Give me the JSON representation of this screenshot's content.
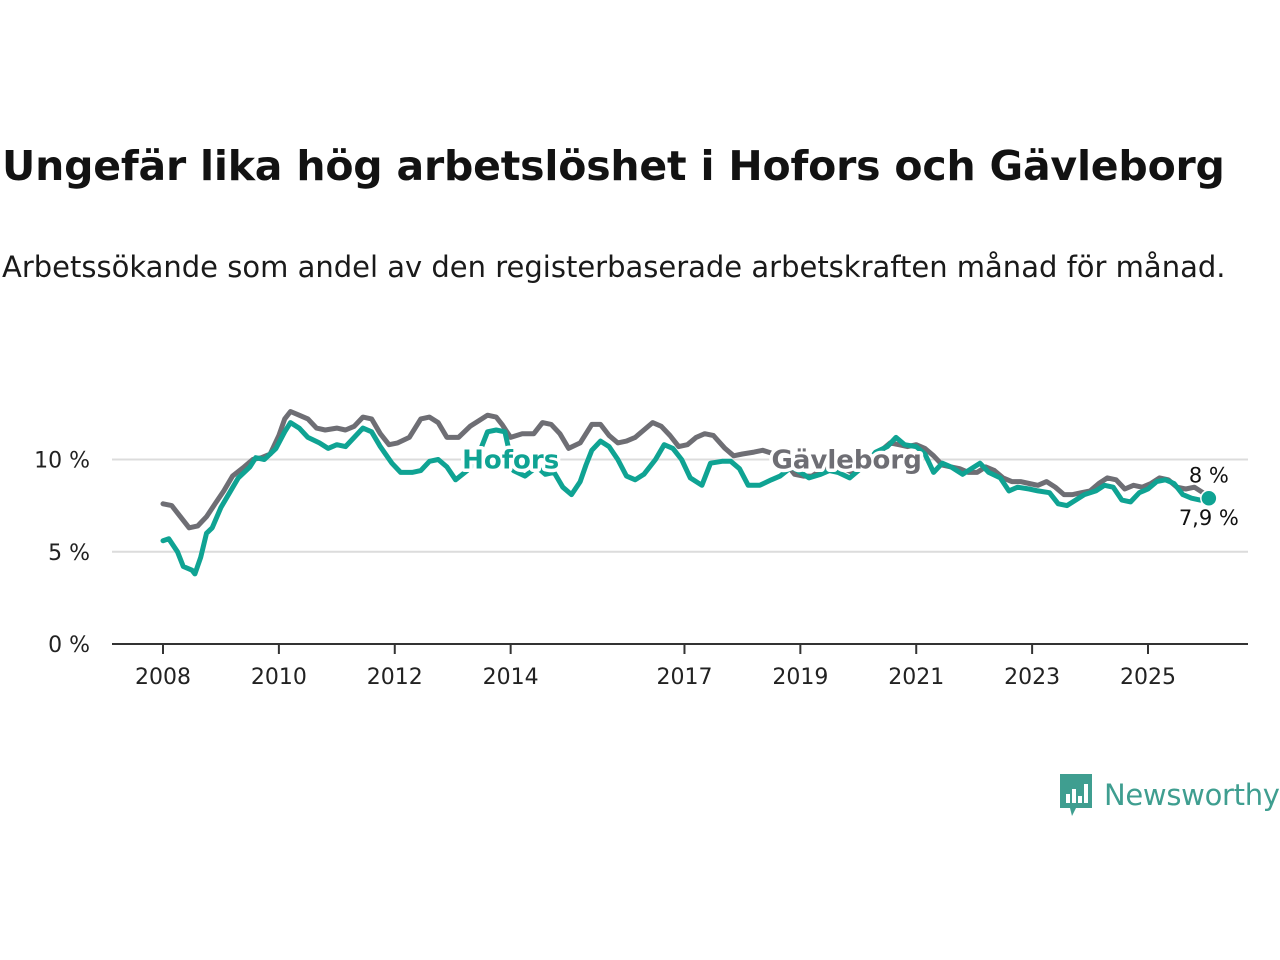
{
  "title": "Ungefär lika hög arbetslöshet i Hofors och Gävleborg",
  "subtitle": "Arbetssökande som andel av den registerbaserade arbetskraften månad för månad.",
  "brand": "Newsworthy",
  "colors": {
    "hofors": "#0fa393",
    "gavleborg": "#6e6e74",
    "grid": "#dcdcdc",
    "axis": "#333333",
    "brand": "#3f9e90"
  },
  "chart_data": {
    "type": "line",
    "title": "Ungefär lika hög arbetslöshet i Hofors och Gävleborg",
    "xlabel": "",
    "ylabel": "",
    "ylim": [
      0,
      13.5
    ],
    "xlim": [
      2007.6,
      2026.7
    ],
    "yticks": [
      {
        "value": 0,
        "label": "0 %"
      },
      {
        "value": 5,
        "label": "5 %"
      },
      {
        "value": 10,
        "label": "10 %"
      }
    ],
    "xticks": [
      {
        "value": 2008,
        "label": "2008"
      },
      {
        "value": 2010,
        "label": "2010"
      },
      {
        "value": 2012,
        "label": "2012"
      },
      {
        "value": 2014,
        "label": "2014"
      },
      {
        "value": 2017,
        "label": "2017"
      },
      {
        "value": 2019,
        "label": "2019"
      },
      {
        "value": 2021,
        "label": "2021"
      },
      {
        "value": 2023,
        "label": "2023"
      },
      {
        "value": 2025,
        "label": "2025"
      }
    ],
    "series": [
      {
        "name": "Gävleborg",
        "label": "Gävleborg",
        "end_label": "8 %",
        "points": [
          [
            2008.0,
            7.6
          ],
          [
            2008.15,
            7.5
          ],
          [
            2008.3,
            6.9
          ],
          [
            2008.45,
            6.3
          ],
          [
            2008.6,
            6.4
          ],
          [
            2008.75,
            6.9
          ],
          [
            2008.9,
            7.6
          ],
          [
            2009.05,
            8.3
          ],
          [
            2009.2,
            9.1
          ],
          [
            2009.4,
            9.6
          ],
          [
            2009.55,
            10.0
          ],
          [
            2009.7,
            10.1
          ],
          [
            2009.85,
            10.3
          ],
          [
            2010.0,
            11.3
          ],
          [
            2010.1,
            12.2
          ],
          [
            2010.2,
            12.6
          ],
          [
            2010.35,
            12.4
          ],
          [
            2010.5,
            12.2
          ],
          [
            2010.65,
            11.7
          ],
          [
            2010.8,
            11.6
          ],
          [
            2011.0,
            11.7
          ],
          [
            2011.15,
            11.6
          ],
          [
            2011.3,
            11.8
          ],
          [
            2011.45,
            12.3
          ],
          [
            2011.6,
            12.2
          ],
          [
            2011.75,
            11.4
          ],
          [
            2011.9,
            10.8
          ],
          [
            2012.05,
            10.9
          ],
          [
            2012.25,
            11.2
          ],
          [
            2012.45,
            12.2
          ],
          [
            2012.6,
            12.3
          ],
          [
            2012.75,
            12.0
          ],
          [
            2012.9,
            11.2
          ],
          [
            2013.1,
            11.2
          ],
          [
            2013.3,
            11.8
          ],
          [
            2013.45,
            12.1
          ],
          [
            2013.6,
            12.4
          ],
          [
            2013.75,
            12.3
          ],
          [
            2013.85,
            11.9
          ],
          [
            2014.0,
            11.2
          ],
          [
            2014.2,
            11.4
          ],
          [
            2014.4,
            11.4
          ],
          [
            2014.55,
            12.0
          ],
          [
            2014.7,
            11.9
          ],
          [
            2014.85,
            11.4
          ],
          [
            2015.0,
            10.6
          ],
          [
            2015.2,
            10.9
          ],
          [
            2015.4,
            11.9
          ],
          [
            2015.55,
            11.9
          ],
          [
            2015.7,
            11.3
          ],
          [
            2015.85,
            10.9
          ],
          [
            2016.0,
            11.0
          ],
          [
            2016.15,
            11.2
          ],
          [
            2016.3,
            11.6
          ],
          [
            2016.45,
            12.0
          ],
          [
            2016.6,
            11.8
          ],
          [
            2016.75,
            11.3
          ],
          [
            2016.9,
            10.7
          ],
          [
            2017.05,
            10.8
          ],
          [
            2017.2,
            11.2
          ],
          [
            2017.35,
            11.4
          ],
          [
            2017.5,
            11.3
          ],
          [
            2017.7,
            10.6
          ],
          [
            2017.85,
            10.2
          ],
          [
            2018.0,
            10.3
          ],
          [
            2018.2,
            10.4
          ],
          [
            2018.35,
            10.5
          ],
          [
            2018.55,
            10.3
          ],
          [
            2018.75,
            9.8
          ],
          [
            2018.9,
            9.2
          ],
          [
            2019.05,
            9.1
          ],
          [
            2019.2,
            9.1
          ],
          [
            2019.35,
            9.4
          ],
          [
            2019.55,
            9.6
          ],
          [
            2019.75,
            9.5
          ],
          [
            2019.9,
            9.3
          ],
          [
            2020.05,
            9.5
          ],
          [
            2020.25,
            10.1
          ],
          [
            2020.4,
            10.5
          ],
          [
            2020.55,
            10.9
          ],
          [
            2020.7,
            10.8
          ],
          [
            2020.85,
            10.7
          ],
          [
            2021.0,
            10.8
          ],
          [
            2021.15,
            10.6
          ],
          [
            2021.3,
            10.2
          ],
          [
            2021.45,
            9.7
          ],
          [
            2021.6,
            9.6
          ],
          [
            2021.75,
            9.5
          ],
          [
            2021.9,
            9.3
          ],
          [
            2022.05,
            9.3
          ],
          [
            2022.2,
            9.6
          ],
          [
            2022.35,
            9.4
          ],
          [
            2022.5,
            9.0
          ],
          [
            2022.65,
            8.8
          ],
          [
            2022.8,
            8.8
          ],
          [
            2022.95,
            8.7
          ],
          [
            2023.1,
            8.6
          ],
          [
            2023.25,
            8.8
          ],
          [
            2023.4,
            8.5
          ],
          [
            2023.55,
            8.1
          ],
          [
            2023.7,
            8.1
          ],
          [
            2023.85,
            8.2
          ],
          [
            2024.0,
            8.3
          ],
          [
            2024.15,
            8.7
          ],
          [
            2024.3,
            9.0
          ],
          [
            2024.45,
            8.9
          ],
          [
            2024.6,
            8.4
          ],
          [
            2024.75,
            8.6
          ],
          [
            2024.9,
            8.5
          ],
          [
            2025.05,
            8.7
          ],
          [
            2025.2,
            9.0
          ],
          [
            2025.35,
            8.9
          ],
          [
            2025.5,
            8.5
          ],
          [
            2025.65,
            8.4
          ],
          [
            2025.8,
            8.5
          ],
          [
            2025.95,
            8.2
          ],
          [
            2026.05,
            8.0
          ]
        ]
      },
      {
        "name": "Hofors",
        "label": "Hofors",
        "end_label": "7,9 %",
        "points": [
          [
            2008.0,
            5.6
          ],
          [
            2008.1,
            5.7
          ],
          [
            2008.25,
            5.0
          ],
          [
            2008.35,
            4.2
          ],
          [
            2008.5,
            4.0
          ],
          [
            2008.55,
            3.8
          ],
          [
            2008.65,
            4.7
          ],
          [
            2008.75,
            6.0
          ],
          [
            2008.85,
            6.3
          ],
          [
            2009.0,
            7.4
          ],
          [
            2009.15,
            8.2
          ],
          [
            2009.3,
            9.0
          ],
          [
            2009.5,
            9.6
          ],
          [
            2009.6,
            10.1
          ],
          [
            2009.75,
            10.0
          ],
          [
            2009.95,
            10.6
          ],
          [
            2010.1,
            11.5
          ],
          [
            2010.2,
            12.0
          ],
          [
            2010.35,
            11.7
          ],
          [
            2010.5,
            11.2
          ],
          [
            2010.7,
            10.9
          ],
          [
            2010.85,
            10.6
          ],
          [
            2011.0,
            10.8
          ],
          [
            2011.15,
            10.7
          ],
          [
            2011.3,
            11.2
          ],
          [
            2011.45,
            11.7
          ],
          [
            2011.6,
            11.5
          ],
          [
            2011.75,
            10.7
          ],
          [
            2011.95,
            9.8
          ],
          [
            2012.1,
            9.3
          ],
          [
            2012.3,
            9.3
          ],
          [
            2012.45,
            9.4
          ],
          [
            2012.6,
            9.9
          ],
          [
            2012.75,
            10.0
          ],
          [
            2012.9,
            9.6
          ],
          [
            2013.05,
            8.9
          ],
          [
            2013.25,
            9.4
          ],
          [
            2013.4,
            9.9
          ],
          [
            2013.6,
            11.5
          ],
          [
            2013.75,
            11.6
          ],
          [
            2013.9,
            11.5
          ],
          [
            2014.05,
            9.4
          ],
          [
            2014.25,
            9.1
          ],
          [
            2014.45,
            9.6
          ],
          [
            2014.6,
            9.2
          ],
          [
            2014.75,
            9.3
          ],
          [
            2014.9,
            8.5
          ],
          [
            2015.05,
            8.1
          ],
          [
            2015.2,
            8.8
          ],
          [
            2015.3,
            9.7
          ],
          [
            2015.4,
            10.5
          ],
          [
            2015.55,
            11.0
          ],
          [
            2015.7,
            10.7
          ],
          [
            2015.85,
            10.0
          ],
          [
            2016.0,
            9.1
          ],
          [
            2016.15,
            8.9
          ],
          [
            2016.3,
            9.2
          ],
          [
            2016.5,
            10.0
          ],
          [
            2016.65,
            10.8
          ],
          [
            2016.8,
            10.6
          ],
          [
            2016.95,
            10.0
          ],
          [
            2017.1,
            9.0
          ],
          [
            2017.3,
            8.6
          ],
          [
            2017.45,
            9.8
          ],
          [
            2017.65,
            9.9
          ],
          [
            2017.8,
            9.9
          ],
          [
            2017.95,
            9.5
          ],
          [
            2018.1,
            8.6
          ],
          [
            2018.3,
            8.6
          ],
          [
            2018.5,
            8.9
          ],
          [
            2018.65,
            9.1
          ],
          [
            2018.85,
            9.6
          ],
          [
            2019.0,
            9.3
          ],
          [
            2019.15,
            9.0
          ],
          [
            2019.35,
            9.2
          ],
          [
            2019.5,
            9.4
          ],
          [
            2019.65,
            9.3
          ],
          [
            2019.85,
            9.0
          ],
          [
            2020.0,
            9.4
          ],
          [
            2020.15,
            9.8
          ],
          [
            2020.3,
            10.4
          ],
          [
            2020.5,
            10.7
          ],
          [
            2020.65,
            11.2
          ],
          [
            2020.8,
            10.8
          ],
          [
            2021.0,
            10.7
          ],
          [
            2021.15,
            10.3
          ],
          [
            2021.3,
            9.3
          ],
          [
            2021.45,
            9.8
          ],
          [
            2021.6,
            9.6
          ],
          [
            2021.8,
            9.2
          ],
          [
            2021.95,
            9.5
          ],
          [
            2022.1,
            9.8
          ],
          [
            2022.25,
            9.3
          ],
          [
            2022.45,
            9.0
          ],
          [
            2022.6,
            8.3
          ],
          [
            2022.75,
            8.5
          ],
          [
            2022.95,
            8.4
          ],
          [
            2023.1,
            8.3
          ],
          [
            2023.3,
            8.2
          ],
          [
            2023.45,
            7.6
          ],
          [
            2023.6,
            7.5
          ],
          [
            2023.75,
            7.8
          ],
          [
            2023.9,
            8.1
          ],
          [
            2024.1,
            8.3
          ],
          [
            2024.25,
            8.6
          ],
          [
            2024.4,
            8.5
          ],
          [
            2024.55,
            7.8
          ],
          [
            2024.7,
            7.7
          ],
          [
            2024.85,
            8.2
          ],
          [
            2025.0,
            8.4
          ],
          [
            2025.15,
            8.8
          ],
          [
            2025.3,
            8.9
          ],
          [
            2025.45,
            8.7
          ],
          [
            2025.6,
            8.1
          ],
          [
            2025.75,
            7.9
          ],
          [
            2025.9,
            7.8
          ],
          [
            2026.05,
            7.9
          ]
        ]
      }
    ],
    "series_label_positions": {
      "Hofors": {
        "x": 2014.0,
        "y": 10.0
      },
      "Gävleborg": {
        "x": 2019.8,
        "y": 10.0
      }
    }
  }
}
